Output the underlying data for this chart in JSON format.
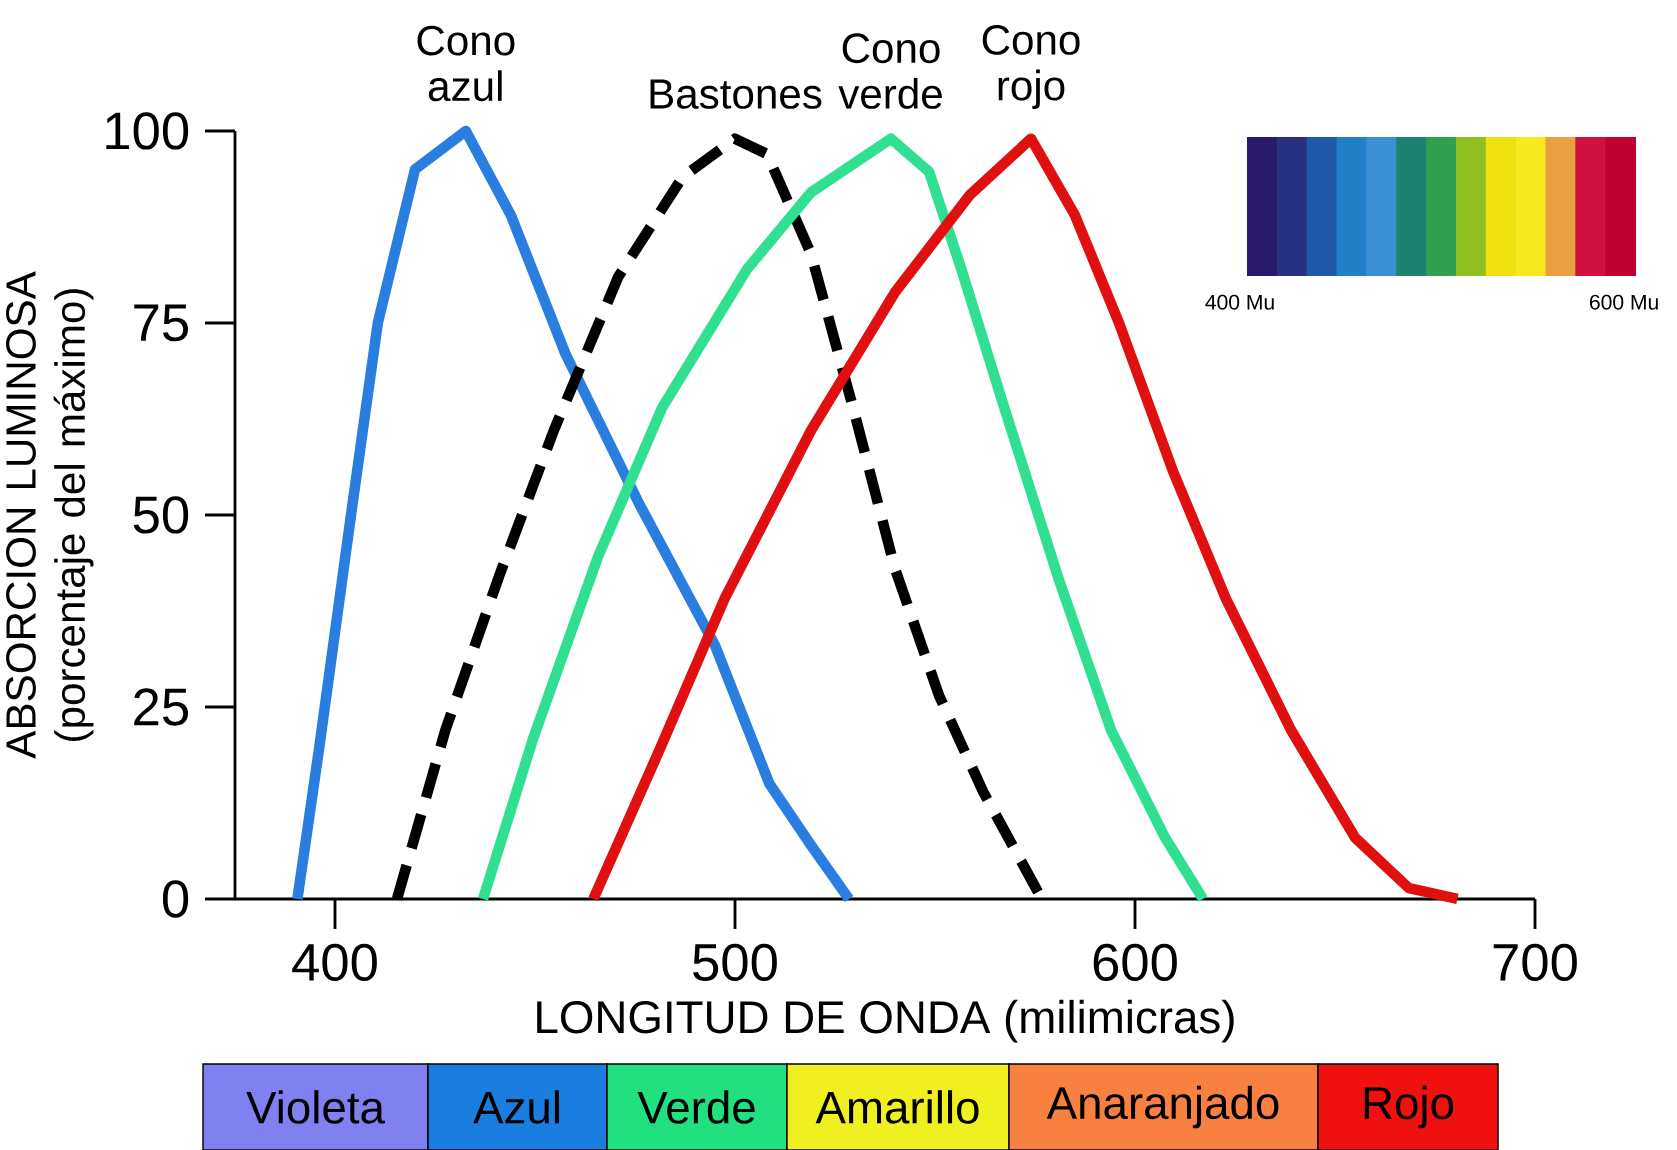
{
  "chart_data": {
    "type": "line",
    "xlabel": "LONGITUD DE ONDA (milimicras)",
    "ylabel": "ABSORCION LUMINOSA (porcentaje del máximo)",
    "xlim": [
      375,
      700
    ],
    "ylim": [
      0,
      100
    ],
    "xticks": [
      400,
      500,
      600,
      700
    ],
    "yticks": [
      0,
      25,
      50,
      75,
      100
    ],
    "series": [
      {
        "name": "Cono azul",
        "color": "#2a7ee0",
        "line_style": "solid",
        "x": [
          390.6,
          396,
          404,
          410.7,
          420,
          432.7,
          444,
          457.6,
          476,
          495,
          508.6,
          519,
          528.5
        ],
        "values": [
          0,
          19.5,
          50,
          75,
          95,
          100,
          89,
          71,
          51.5,
          33,
          15,
          7,
          0
        ]
      },
      {
        "name": "Bastones",
        "color": "#000000",
        "line_style": "dashed",
        "x": [
          415.5,
          427.6,
          441,
          454.7,
          470.8,
          486.9,
          500,
          508,
          519,
          529.5,
          540,
          551,
          562,
          576.7
        ],
        "values": [
          0,
          22,
          42,
          61,
          81,
          94,
          99,
          97,
          84,
          64,
          43,
          26.5,
          14,
          0
        ]
      },
      {
        "name": "Cono verde",
        "color": "#30e090",
        "line_style": "solid",
        "x": [
          437,
          449.6,
          465.7,
          481.8,
          503,
          519,
          539,
          548.5,
          556.6,
          567.3,
          580.7,
          594,
          607.5,
          617
        ],
        "values": [
          0,
          21,
          44.5,
          64,
          82,
          92,
          99,
          94.7,
          82,
          64,
          42,
          22,
          8,
          0
        ]
      },
      {
        "name": "Cono rojo",
        "color": "#e01010",
        "line_style": "solid",
        "x": [
          464.6,
          481.2,
          497.3,
          519,
          540,
          558.6,
          574,
          585,
          596,
          609.5,
          622.8,
          639,
          655,
          668.5,
          680.6
        ],
        "values": [
          0,
          19.5,
          39,
          61,
          79,
          91.6,
          99,
          89,
          75,
          55.7,
          39,
          22,
          8,
          1.4,
          0
        ]
      }
    ],
    "annotations": [
      "Violeta",
      "Azul",
      "Verde",
      "Amarillo",
      "Anaranjado",
      "Rojo",
      "400 Mu",
      "600 Mu"
    ]
  }
}
